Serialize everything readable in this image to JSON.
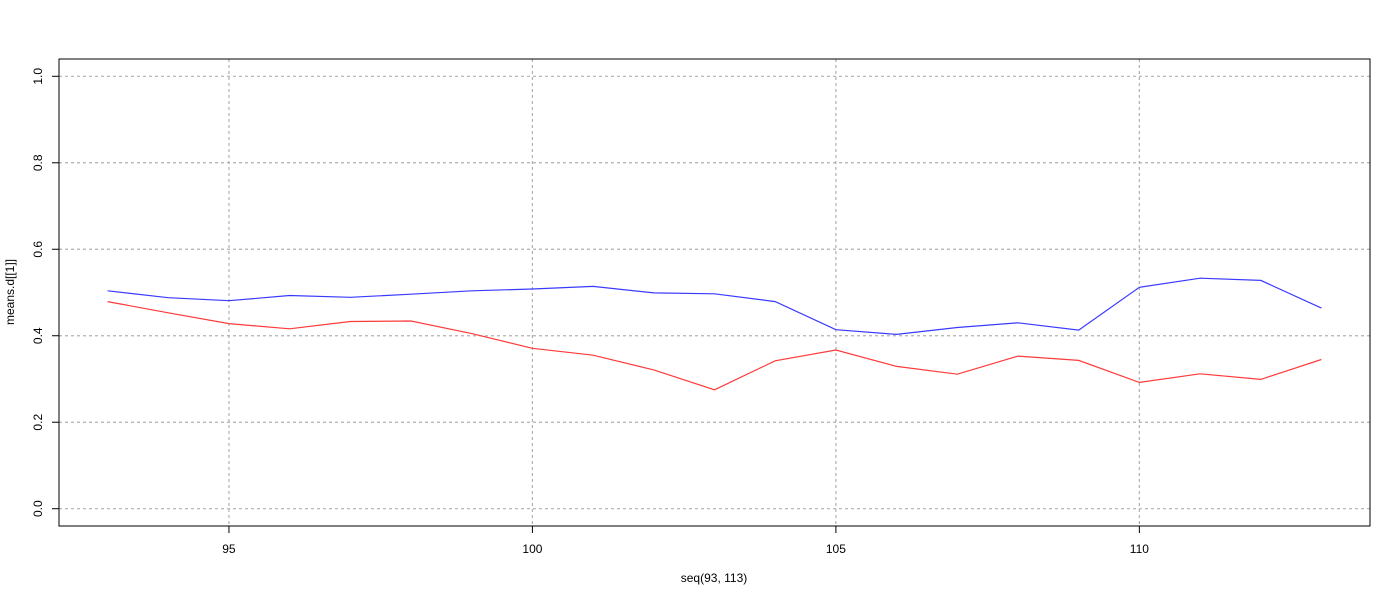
{
  "chart_data": {
    "type": "line",
    "title": "",
    "xlabel": "seq(93, 113)",
    "ylabel": "means.d[[1]]",
    "xlim": [
      92.2,
      113.8
    ],
    "ylim": [
      -0.04,
      1.04
    ],
    "x_ticks": [
      95,
      100,
      105,
      110
    ],
    "y_ticks": [
      0.0,
      0.2,
      0.4,
      0.6,
      0.8,
      1.0
    ],
    "y_tick_labels": [
      "0.0",
      "0.2",
      "0.4",
      "0.6",
      "0.8",
      "1.0"
    ],
    "grid": true,
    "x": [
      93,
      94,
      95,
      96,
      97,
      98,
      99,
      100,
      101,
      102,
      103,
      104,
      105,
      106,
      107,
      108,
      109,
      110,
      111,
      112,
      113
    ],
    "series": [
      {
        "color": "#3a3aff",
        "values": [
          0.504,
          0.488,
          0.481,
          0.493,
          0.489,
          0.496,
          0.504,
          0.508,
          0.514,
          0.499,
          0.497,
          0.479,
          0.414,
          0.403,
          0.419,
          0.43,
          0.413,
          0.512,
          0.533,
          0.528,
          0.464
        ]
      },
      {
        "color": "#ff3a3a",
        "values": [
          0.479,
          0.453,
          0.428,
          0.416,
          0.433,
          0.434,
          0.405,
          0.371,
          0.355,
          0.321,
          0.275,
          0.342,
          0.367,
          0.329,
          0.311,
          0.353,
          0.343,
          0.292,
          0.312,
          0.299,
          0.345
        ]
      }
    ]
  }
}
